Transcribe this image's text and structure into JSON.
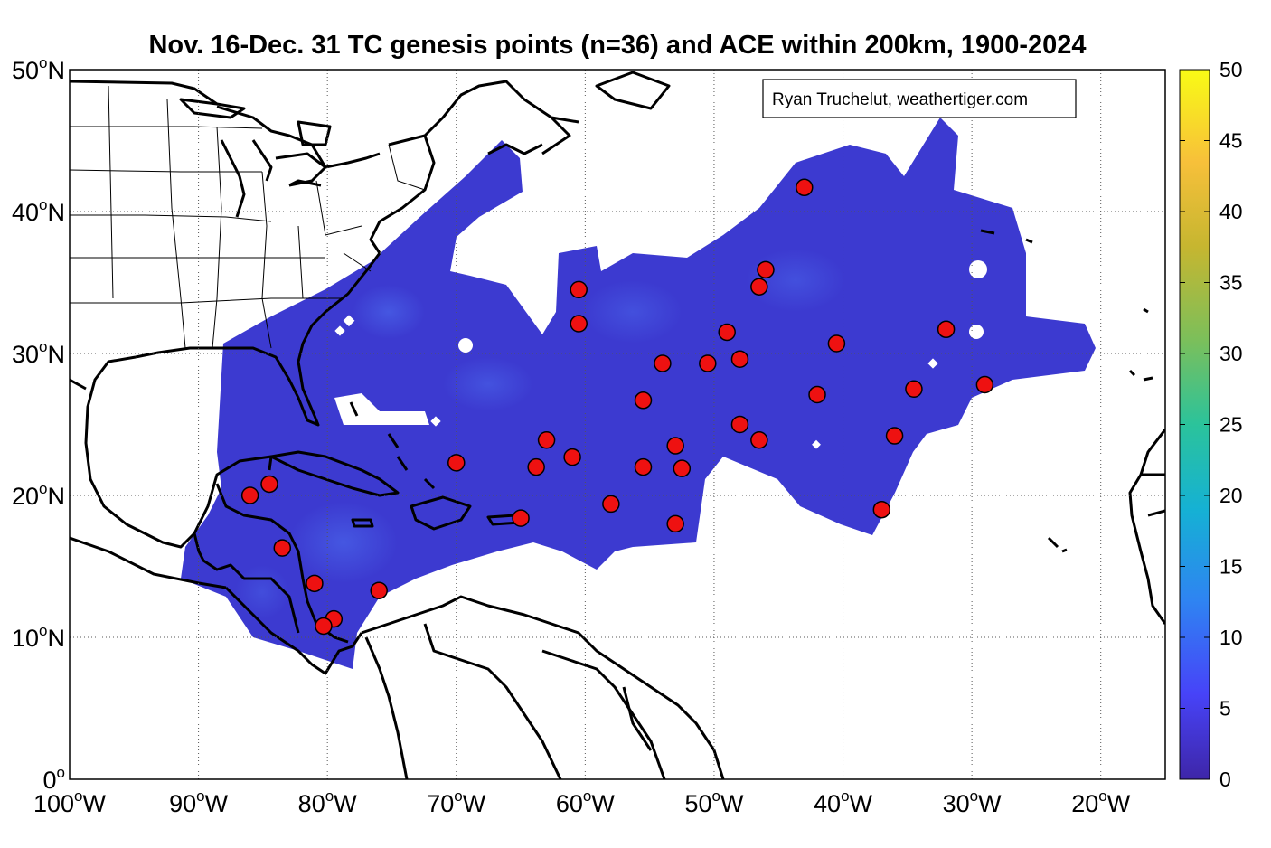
{
  "title": "Nov. 16-Dec. 31 TC genesis points (n=36) and ACE within 200km, 1900-2024",
  "credit": "Ryan Truchelut, weathertiger.com",
  "map_extent": {
    "lon": [
      -100,
      -15
    ],
    "lat": [
      0,
      50
    ]
  },
  "lat_labels": [
    {
      "deg": "50",
      "hemi": "N",
      "value": 50
    },
    {
      "deg": "40",
      "hemi": "N",
      "value": 40
    },
    {
      "deg": "30",
      "hemi": "N",
      "value": 30
    },
    {
      "deg": "20",
      "hemi": "N",
      "value": 20
    },
    {
      "deg": "10",
      "hemi": "N",
      "value": 10
    },
    {
      "deg": "0",
      "hemi": "",
      "value": 0
    }
  ],
  "lon_labels": [
    {
      "deg": "100",
      "hemi": "W",
      "value": -100
    },
    {
      "deg": "90",
      "hemi": "W",
      "value": -90
    },
    {
      "deg": "80",
      "hemi": "W",
      "value": -80
    },
    {
      "deg": "70",
      "hemi": "W",
      "value": -70
    },
    {
      "deg": "60",
      "hemi": "W",
      "value": -60
    },
    {
      "deg": "50",
      "hemi": "W",
      "value": -50
    },
    {
      "deg": "40",
      "hemi": "W",
      "value": -40
    },
    {
      "deg": "30",
      "hemi": "W",
      "value": -30
    },
    {
      "deg": "20",
      "hemi": "W",
      "value": -20
    }
  ],
  "colorbar": {
    "min": 0,
    "max": 50,
    "ticks": [
      "0",
      "5",
      "10",
      "15",
      "20",
      "25",
      "30",
      "35",
      "40",
      "45",
      "50"
    ],
    "colors": [
      "#3e26a8",
      "#4743f8",
      "#2f83f2",
      "#15b1d4",
      "#2bc39b",
      "#7cbf5a",
      "#c6b630",
      "#f7c03a",
      "#f9fb15"
    ]
  },
  "colors": {
    "ace_field": "#3d3cd2",
    "genesis_point": "#ee1111",
    "land": "#000000"
  },
  "genesis_points": [
    {
      "lon": -43.0,
      "lat": 41.7
    },
    {
      "lon": -46.0,
      "lat": 35.9
    },
    {
      "lon": -46.5,
      "lat": 34.7
    },
    {
      "lon": -60.5,
      "lat": 34.5
    },
    {
      "lon": -60.5,
      "lat": 32.1
    },
    {
      "lon": -49.0,
      "lat": 31.5
    },
    {
      "lon": -40.5,
      "lat": 30.7
    },
    {
      "lon": -32.0,
      "lat": 31.7
    },
    {
      "lon": -54.0,
      "lat": 29.3
    },
    {
      "lon": -50.5,
      "lat": 29.3
    },
    {
      "lon": -48.0,
      "lat": 29.6
    },
    {
      "lon": -42.0,
      "lat": 27.1
    },
    {
      "lon": -34.5,
      "lat": 27.5
    },
    {
      "lon": -29.0,
      "lat": 27.8
    },
    {
      "lon": -55.5,
      "lat": 26.7
    },
    {
      "lon": -48.0,
      "lat": 25.0
    },
    {
      "lon": -46.5,
      "lat": 23.9
    },
    {
      "lon": -36.0,
      "lat": 24.2
    },
    {
      "lon": -53.0,
      "lat": 23.5
    },
    {
      "lon": -63.0,
      "lat": 23.9
    },
    {
      "lon": -61.0,
      "lat": 22.7
    },
    {
      "lon": -70.0,
      "lat": 22.3
    },
    {
      "lon": -63.8,
      "lat": 22.0
    },
    {
      "lon": -55.5,
      "lat": 22.0
    },
    {
      "lon": -52.5,
      "lat": 21.9
    },
    {
      "lon": -58.0,
      "lat": 19.4
    },
    {
      "lon": -65.0,
      "lat": 18.4
    },
    {
      "lon": -53.0,
      "lat": 18.0
    },
    {
      "lon": -37.0,
      "lat": 19.0
    },
    {
      "lon": -86.0,
      "lat": 20.0
    },
    {
      "lon": -84.5,
      "lat": 20.8
    },
    {
      "lon": -83.5,
      "lat": 16.3
    },
    {
      "lon": -81.0,
      "lat": 13.8
    },
    {
      "lon": -76.0,
      "lat": 13.3
    },
    {
      "lon": -79.5,
      "lat": 11.3
    },
    {
      "lon": -80.3,
      "lat": 10.8
    }
  ]
}
